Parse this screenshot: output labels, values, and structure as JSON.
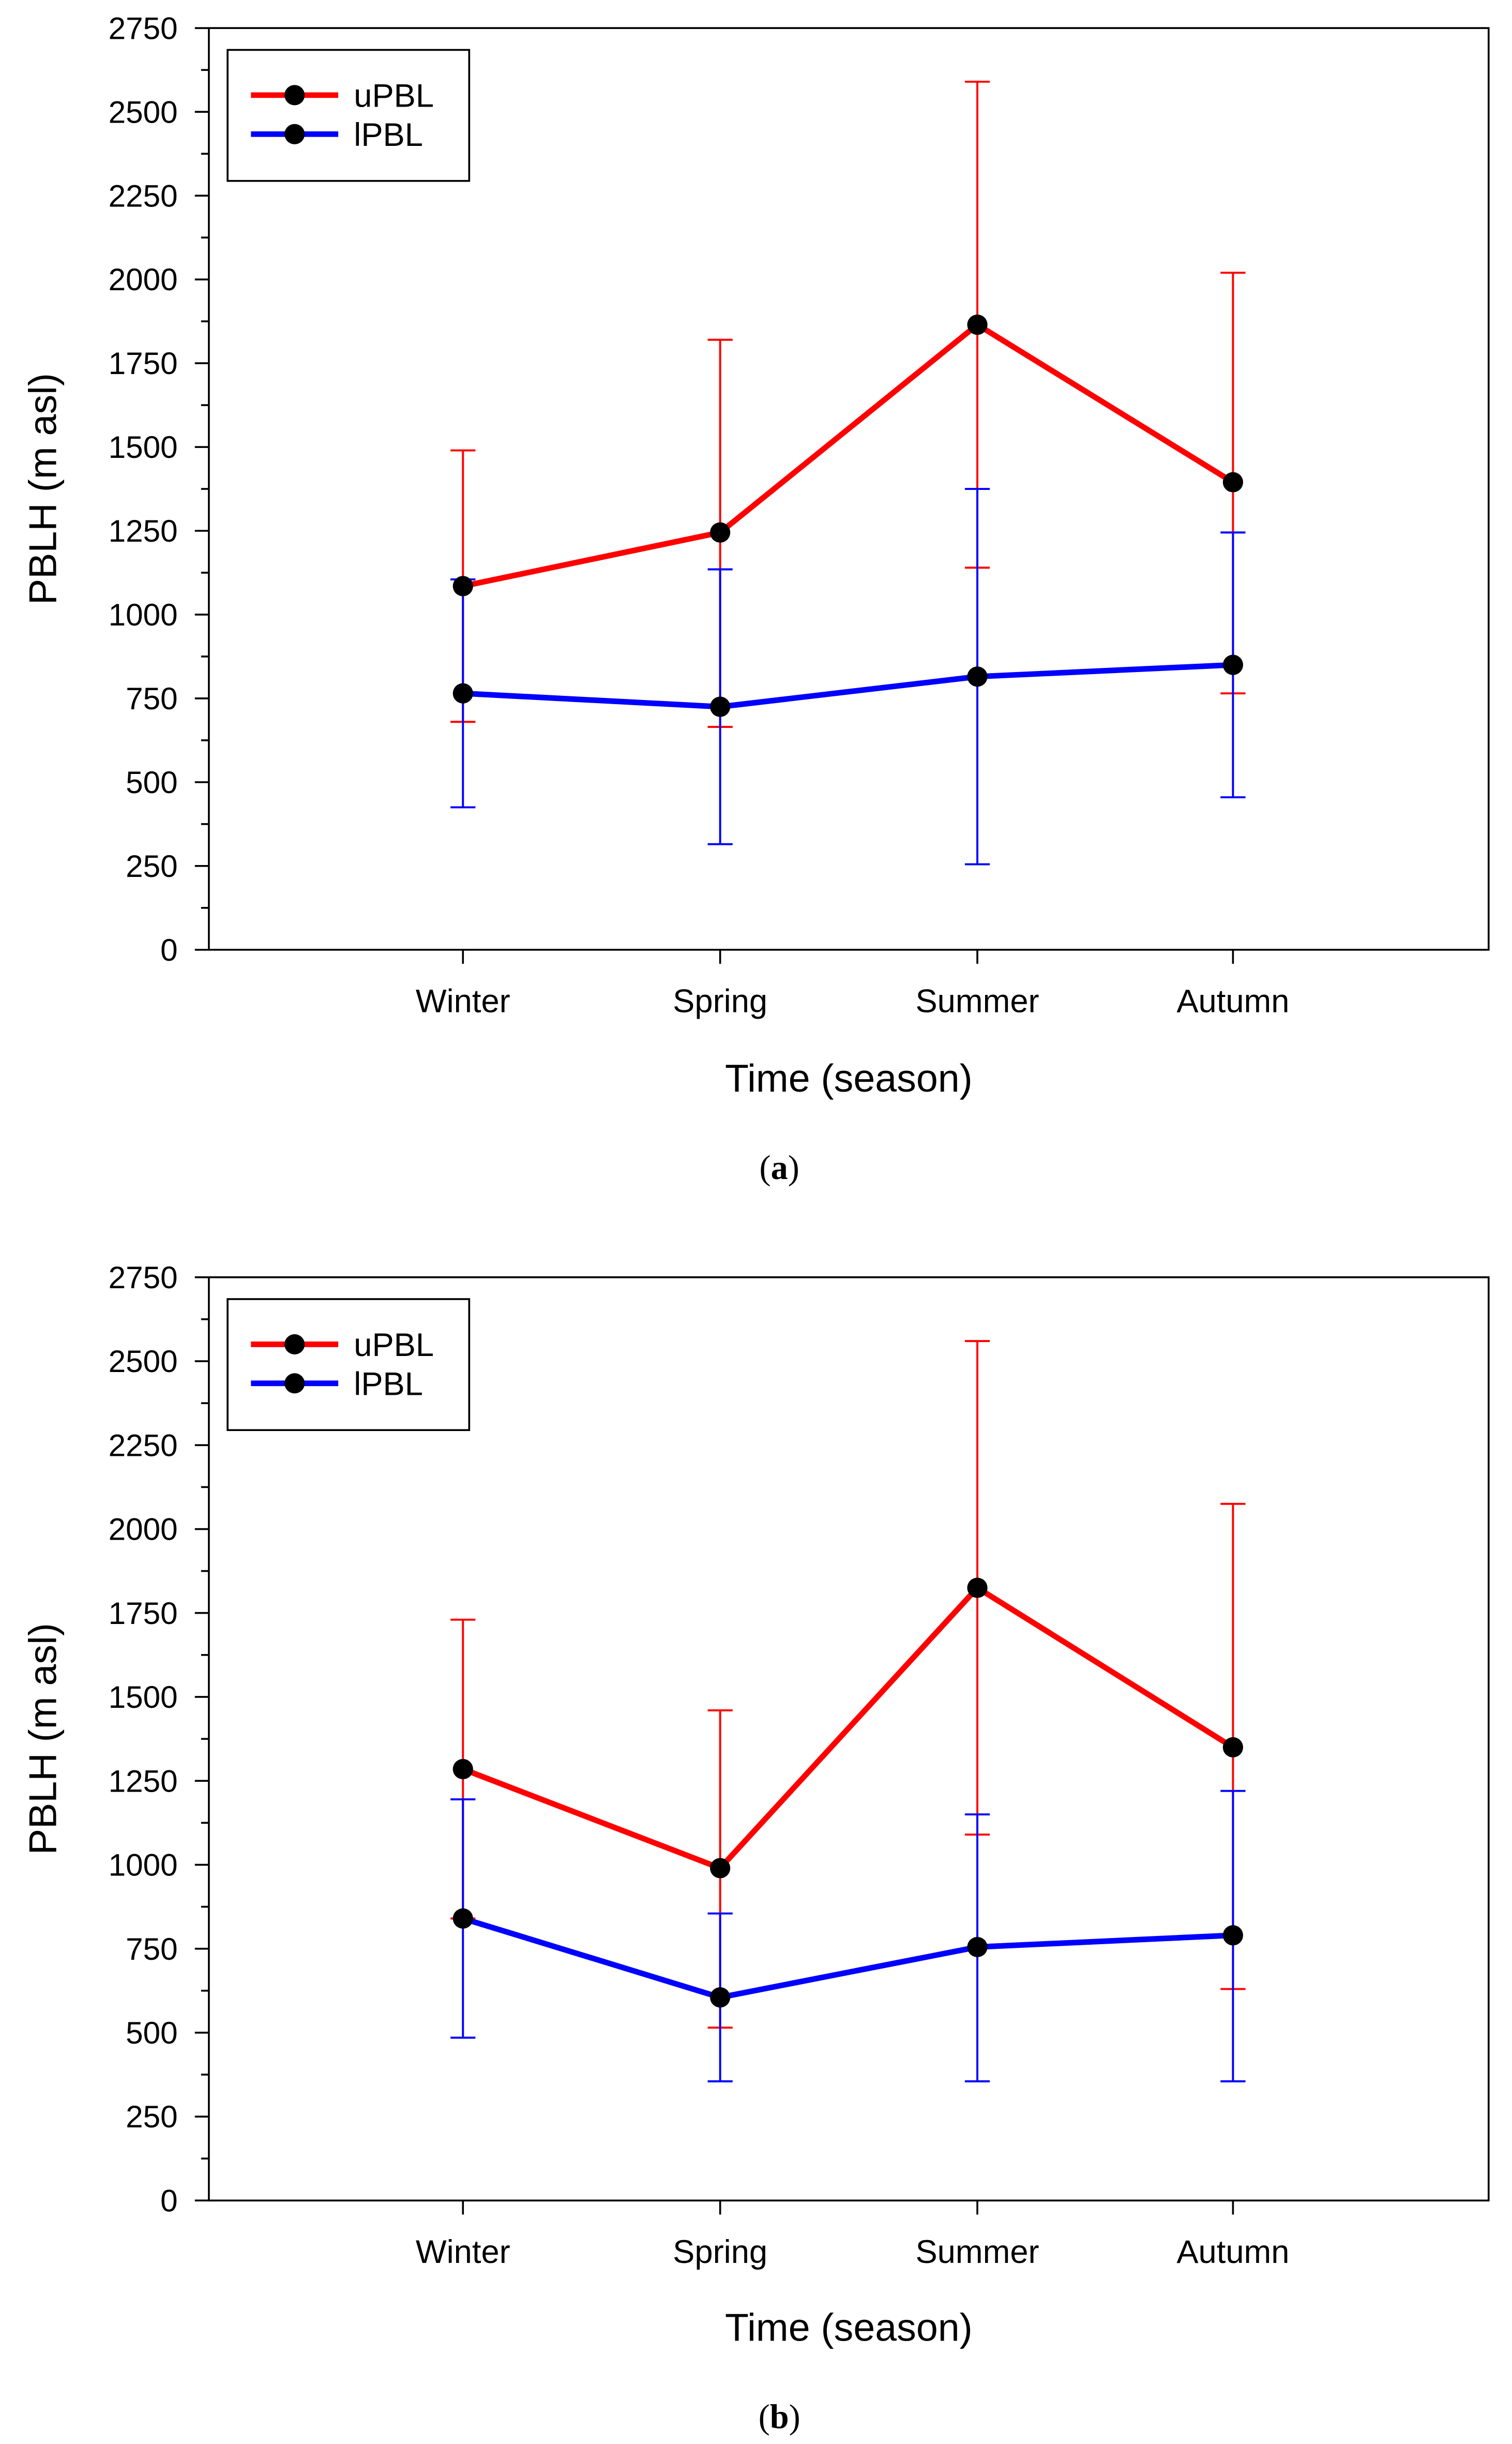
{
  "chart_data": [
    {
      "type": "line",
      "panel_label": "a",
      "title": "",
      "xlabel": "Time (season)",
      "ylabel": "PBLH (m asl)",
      "categories": [
        "Winter",
        "Spring",
        "Summer",
        "Autumn"
      ],
      "ylim": [
        0,
        2750
      ],
      "yticks": [
        0,
        250,
        500,
        750,
        1000,
        1250,
        1500,
        1750,
        2000,
        2250,
        2500,
        2750
      ],
      "legend_position": "top-left",
      "series": [
        {
          "name": "uPBL",
          "color": "#ff0000",
          "values": [
            1085,
            1245,
            1865,
            1395
          ],
          "error_low": [
            680,
            665,
            1140,
            765
          ],
          "error_high": [
            1490,
            1820,
            2590,
            2020
          ]
        },
        {
          "name": "lPBL",
          "color": "#0000ff",
          "values": [
            765,
            725,
            815,
            850
          ],
          "error_low": [
            425,
            315,
            255,
            455
          ],
          "error_high": [
            1105,
            1135,
            1375,
            1245
          ]
        }
      ]
    },
    {
      "type": "line",
      "panel_label": "b",
      "title": "",
      "xlabel": "Time (season)",
      "ylabel": "PBLH (m asl)",
      "categories": [
        "Winter",
        "Spring",
        "Summer",
        "Autumn"
      ],
      "ylim": [
        0,
        2750
      ],
      "yticks": [
        0,
        250,
        500,
        750,
        1000,
        1250,
        1500,
        1750,
        2000,
        2250,
        2500,
        2750
      ],
      "legend_position": "top-left",
      "series": [
        {
          "name": "uPBL",
          "color": "#ff0000",
          "values": [
            1285,
            990,
            1825,
            1350
          ],
          "error_low": [
            840,
            515,
            1090,
            630
          ],
          "error_high": [
            1730,
            1460,
            2560,
            2075
          ]
        },
        {
          "name": "lPBL",
          "color": "#0000ff",
          "values": [
            840,
            605,
            755,
            790
          ],
          "error_low": [
            485,
            355,
            355,
            355
          ],
          "error_high": [
            1195,
            855,
            1150,
            1220
          ]
        }
      ]
    }
  ]
}
